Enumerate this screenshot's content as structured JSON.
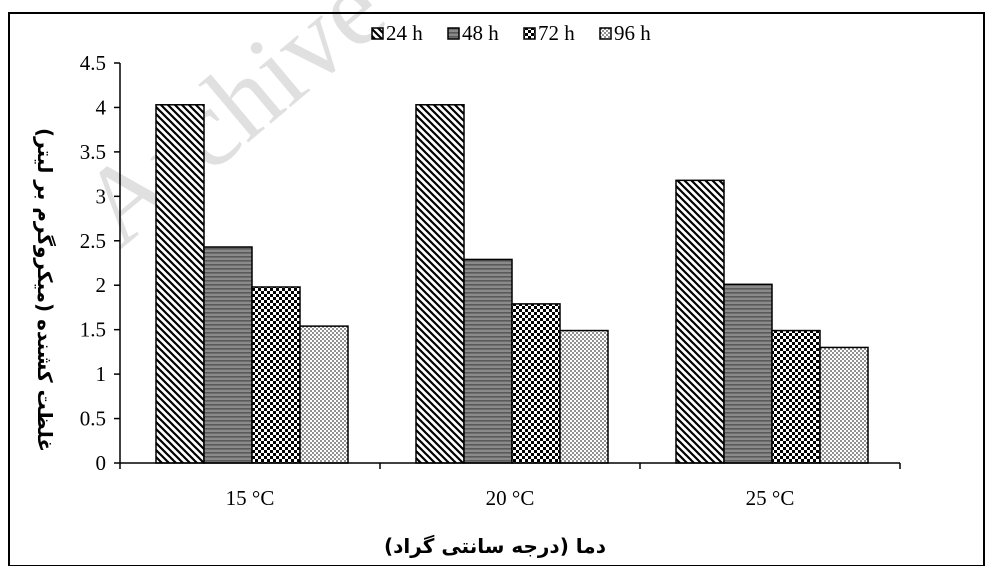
{
  "chart_data": {
    "type": "bar",
    "title": "",
    "xlabel": "دما (درجه سانتی گراد)",
    "ylabel": "غلظت کشنده (میکروگرم بر لیتر)",
    "categories": [
      "15 °C",
      "20 °C",
      "25 °C"
    ],
    "ylim": [
      0,
      4.5
    ],
    "yticks": [
      "0",
      "0.5",
      "1",
      "1.5",
      "2",
      "2.5",
      "3",
      "3.5",
      "4",
      "4.5"
    ],
    "series": [
      {
        "name": "24 h",
        "values": [
          4.03,
          4.03,
          3.18
        ],
        "pattern": "diagonal-hatch"
      },
      {
        "name": "48 h",
        "values": [
          2.43,
          2.29,
          2.01
        ],
        "pattern": "horizontal-stripes"
      },
      {
        "name": "72 h",
        "values": [
          1.98,
          1.79,
          1.49
        ],
        "pattern": "checkerboard"
      },
      {
        "name": "96 h",
        "values": [
          1.54,
          1.49,
          1.3
        ],
        "pattern": "dots"
      }
    ],
    "grid": false,
    "legend_position": "top-center",
    "watermark": "Archive"
  }
}
